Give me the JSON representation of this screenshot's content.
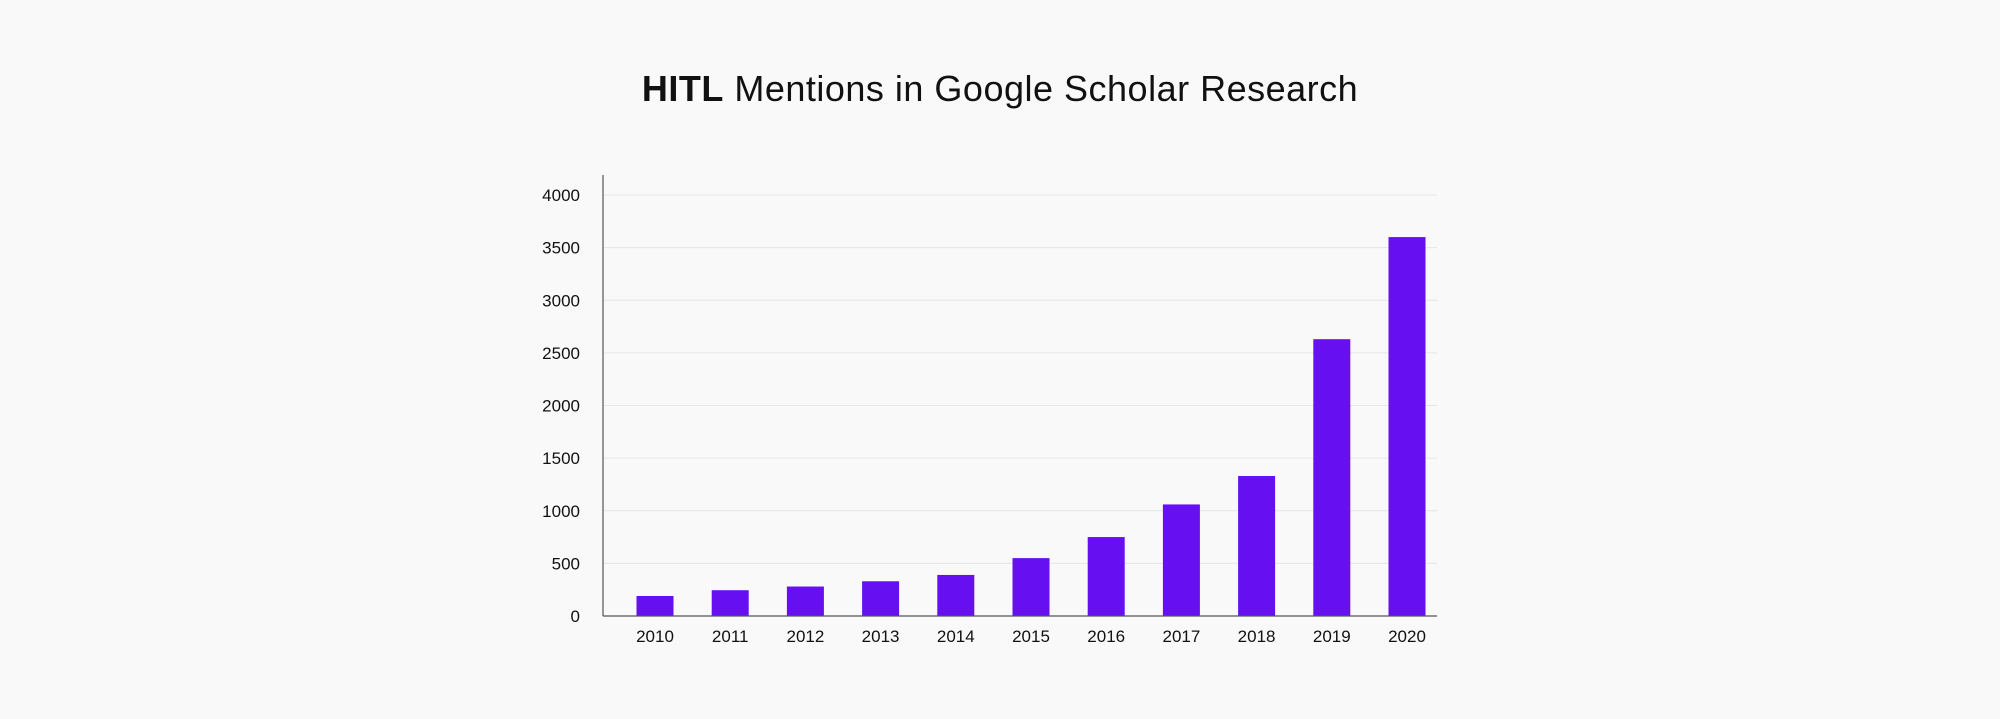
{
  "title": {
    "bold": "HITL",
    "rest": "Mentions in Google Scholar Research"
  },
  "colors": {
    "bar": "#6610f2",
    "gridline": "#e6e6e6",
    "axis": "#555555",
    "background": "#f9f9f9"
  },
  "chart_data": {
    "type": "bar",
    "title": "HITL Mentions in Google Scholar Research",
    "xlabel": "",
    "ylabel": "",
    "categories": [
      "2010",
      "2011",
      "2012",
      "2013",
      "2014",
      "2015",
      "2016",
      "2017",
      "2018",
      "2019",
      "2020"
    ],
    "values": [
      190,
      245,
      280,
      330,
      390,
      550,
      750,
      1060,
      1330,
      2630,
      3600
    ],
    "yticks": [
      0,
      500,
      1000,
      1500,
      2000,
      2500,
      3000,
      3500,
      4000
    ],
    "ylim": [
      0,
      4000
    ],
    "grid": true,
    "legend": "none"
  }
}
